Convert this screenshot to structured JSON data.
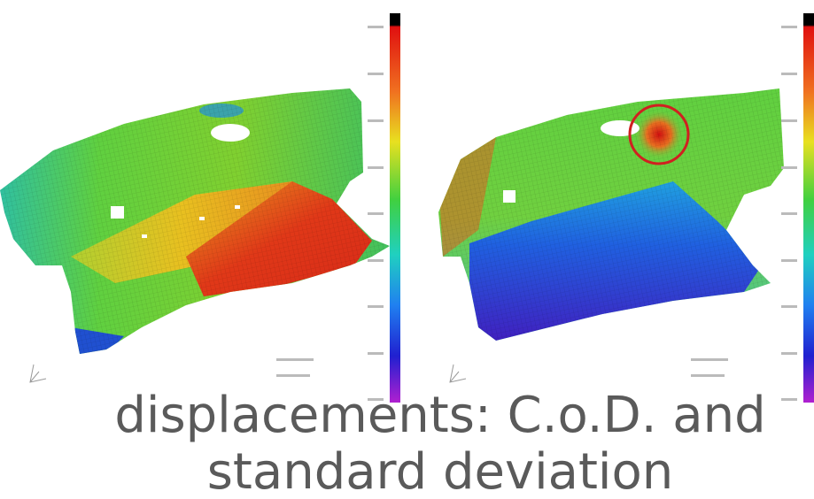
{
  "caption": {
    "lines": [
      "displacements: C.o.D. and",
      "standard deviation"
    ]
  }
}
